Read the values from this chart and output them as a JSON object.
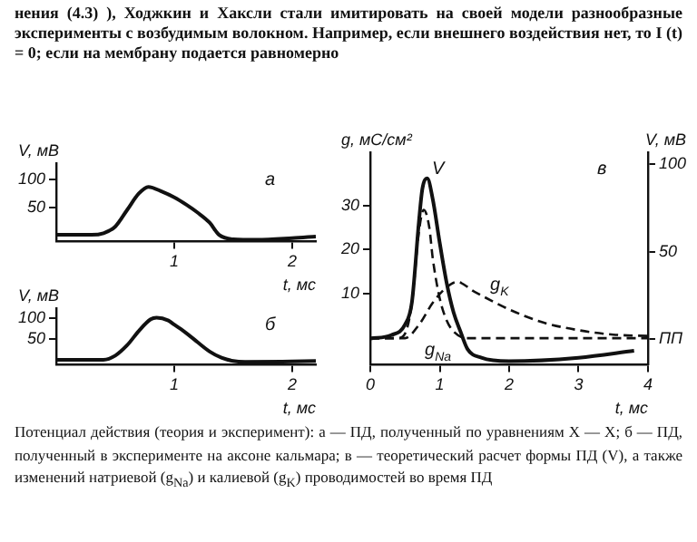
{
  "chart_data": [
    {
      "type": "line",
      "title": "а",
      "xlabel": "t, мс",
      "ylabel": "V, мВ",
      "grid": false,
      "line_style": "solid",
      "marker": "none",
      "xlim": [
        0,
        2.2
      ],
      "xticks": [
        1,
        2
      ],
      "ylim": [
        -12,
        130
      ],
      "yticks": [
        50,
        100
      ],
      "annotations": [
        "нения (4.3) ), Ходжкин и Хаксли стали имитировать на своей модели разнообразные эксперименты с возбудимым волокном. Например, если внешнего воздействия нет, то I (t) = 0; если на мембрану подается равномерно"
      ],
      "series": [
        {
          "color": "#111111",
          "x": [
            0,
            0.3,
            0.4,
            0.5,
            0.6,
            0.7,
            0.78,
            0.9,
            1.0,
            1.1,
            1.2,
            1.3,
            1.38,
            1.5,
            1.7,
            2.0,
            2.2
          ],
          "values": [
            0,
            0,
            3,
            15,
            45,
            75,
            87,
            78,
            68,
            55,
            40,
            22,
            0,
            -8,
            -9,
            -6,
            -3
          ]
        }
      ]
    },
    {
      "type": "line",
      "title": "б",
      "xlabel": "t, мс",
      "ylabel": "V, мВ",
      "grid": false,
      "line_style": "solid",
      "marker": "none",
      "xlim": [
        0,
        2.2
      ],
      "xticks": [
        1,
        2
      ],
      "ylim": [
        -12,
        125
      ],
      "yticks": [
        50,
        100
      ],
      "series": [
        {
          "color": "#111111",
          "x": [
            0,
            0.4,
            0.5,
            0.6,
            0.7,
            0.8,
            0.85,
            0.95,
            1.0,
            1.1,
            1.2,
            1.3,
            1.4,
            1.5,
            1.6,
            2.0,
            2.2
          ],
          "values": [
            0,
            0,
            10,
            35,
            70,
            98,
            102,
            95,
            85,
            65,
            42,
            20,
            5,
            -3,
            -5,
            -4,
            -3
          ]
        }
      ]
    },
    {
      "type": "line",
      "title": "в",
      "xlabel": "t, мс",
      "ylabel": "g, мС/см²",
      "y2label": "V, мВ",
      "grid": false,
      "marker": "none",
      "xlim": [
        0,
        4
      ],
      "xticks": [
        0,
        1,
        2,
        3,
        4
      ],
      "ylim": [
        -6,
        42
      ],
      "yticks": [
        10,
        20,
        30
      ],
      "y2lim": [
        -15,
        107
      ],
      "y2ticks": [
        {
          "value": 0,
          "label": "ПП"
        },
        50,
        100
      ],
      "annotations": [
        "Потенциал действия (теория и эксперимент): а — ПД, полученный по уравнениям Х — Х; б — ПД, полученный в эксперименте на аксоне кальмара; в — теоретический расчет формы ПД (V), а также изменений натриевой (g$_{Na}$) и калиевой (g$_{K}$) проводимостей во время ПД"
      ],
      "series": [
        {
          "name": "V",
          "color": "#111111",
          "axis": "y2",
          "line_style": "solid",
          "x": [
            0,
            0.3,
            0.5,
            0.6,
            0.7,
            0.75,
            0.82,
            0.9,
            1.0,
            1.1,
            1.2,
            1.3,
            1.4,
            1.6,
            2.0,
            3.0,
            3.8
          ],
          "values": [
            0,
            2,
            8,
            21,
            67,
            86,
            92,
            80,
            55,
            32,
            15,
            4,
            -6,
            -11,
            -13,
            -11,
            -7
          ]
        },
        {
          "name": "g$_{Na}$",
          "color": "#111111",
          "line_style": "dashed",
          "x": [
            0,
            0.4,
            0.5,
            0.6,
            0.7,
            0.77,
            0.85,
            0.9,
            1.0,
            1.1,
            1.2,
            1.4,
            2.0,
            3.0,
            4.0
          ],
          "values": [
            0,
            0,
            1,
            8,
            24,
            29,
            25,
            18,
            9,
            4,
            1.5,
            0,
            0,
            0,
            0
          ]
        },
        {
          "name": "g$_{K}$",
          "color": "#111111",
          "line_style": "dashed",
          "x": [
            0,
            0.5,
            0.7,
            0.9,
            1.1,
            1.25,
            1.5,
            2.0,
            2.5,
            3.0,
            3.5,
            4.0
          ],
          "values": [
            0,
            0,
            3,
            8,
            11.5,
            12.7,
            10.5,
            6.5,
            3.5,
            1.8,
            0.8,
            0.5
          ]
        }
      ]
    }
  ]
}
